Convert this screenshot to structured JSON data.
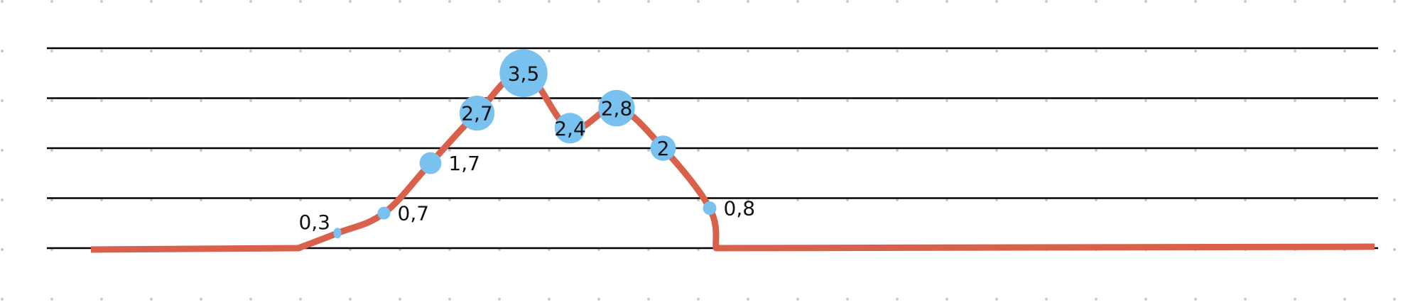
{
  "chart_data": {
    "type": "line",
    "title": "",
    "xlabel": "",
    "ylabel": "",
    "ylim": [
      0,
      4
    ],
    "grid": true,
    "colors": {
      "line": "#d9604a",
      "bubble": "#79c1ef",
      "grid": "#000000",
      "dots": "#c8c8c8",
      "label": "#111111"
    },
    "series": [
      {
        "points": [
          {
            "x": 0.2,
            "y": 0.3,
            "label": "0,3",
            "label_side": "left"
          },
          {
            "x": 0.4,
            "y": 0.7,
            "label": "0,7",
            "label_side": "right"
          },
          {
            "x": 0.6,
            "y": 1.7,
            "label": "1,7",
            "label_side": "right"
          },
          {
            "x": 0.8,
            "y": 2.7,
            "label": "2,7",
            "label_side": "inside"
          },
          {
            "x": 1.0,
            "y": 3.5,
            "label": "3,5",
            "label_side": "inside"
          },
          {
            "x": 1.2,
            "y": 2.4,
            "label": "2,4",
            "label_side": "inside"
          },
          {
            "x": 1.4,
            "y": 2.8,
            "label": "2,8",
            "label_side": "inside"
          },
          {
            "x": 1.6,
            "y": 2.0,
            "label": "2",
            "label_side": "inside"
          },
          {
            "x": 1.8,
            "y": 0.8,
            "label": "0,8",
            "label_side": "right"
          }
        ]
      }
    ]
  }
}
